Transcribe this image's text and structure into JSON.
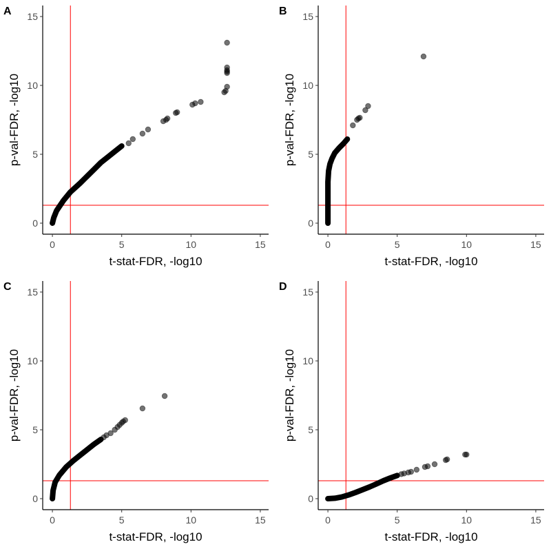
{
  "chart_data": [
    {
      "type": "scatter",
      "panel_label": "A",
      "xlabel": "t-stat-FDR, -log10",
      "ylabel": "p-val-FDR, -log10",
      "xlim": [
        -0.7,
        15.6
      ],
      "ylim": [
        -0.8,
        15.8
      ],
      "xticks": [
        0,
        5,
        10,
        15
      ],
      "yticks": [
        0,
        5,
        10,
        15
      ],
      "vline": 1.3,
      "hline": 1.3,
      "dense_curve": [
        [
          0,
          0
        ],
        [
          0.1,
          0.4
        ],
        [
          0.3,
          0.9
        ],
        [
          0.5,
          1.2
        ],
        [
          0.8,
          1.65
        ],
        [
          1.3,
          2.26
        ],
        [
          2,
          2.9
        ],
        [
          2.5,
          3.4
        ],
        [
          3,
          3.9
        ],
        [
          3.5,
          4.4
        ],
        [
          4,
          4.8
        ],
        [
          4.5,
          5.2
        ],
        [
          5,
          5.6
        ]
      ],
      "points": [
        [
          5.5,
          5.8
        ],
        [
          5.8,
          6.1
        ],
        [
          6.5,
          6.5
        ],
        [
          6.9,
          6.8
        ],
        [
          8,
          7.4
        ],
        [
          8.2,
          7.5
        ],
        [
          8.3,
          7.6
        ],
        [
          8.9,
          8.0
        ],
        [
          9.0,
          8.05
        ],
        [
          10.1,
          8.6
        ],
        [
          10.3,
          8.7
        ],
        [
          10.7,
          8.8
        ],
        [
          12.4,
          9.5
        ],
        [
          12.5,
          9.6
        ],
        [
          12.6,
          9.9
        ],
        [
          12.6,
          10.9
        ],
        [
          12.6,
          11.0
        ],
        [
          12.6,
          11.1
        ],
        [
          12.6,
          11.3
        ],
        [
          12.6,
          13.1
        ]
      ]
    },
    {
      "type": "scatter",
      "panel_label": "B",
      "xlabel": "t-stat-FDR, -log10",
      "ylabel": "p-val-FDR, -log10",
      "xlim": [
        -0.7,
        15.6
      ],
      "ylim": [
        -0.8,
        15.8
      ],
      "xticks": [
        0,
        5,
        10,
        15
      ],
      "yticks": [
        0,
        5,
        10,
        15
      ],
      "vline": 1.3,
      "hline": 1.3,
      "dense_curve": [
        [
          0,
          0
        ],
        [
          0,
          1.5
        ],
        [
          0,
          3
        ],
        [
          0.05,
          3.8
        ],
        [
          0.15,
          4.3
        ],
        [
          0.3,
          4.7
        ],
        [
          0.5,
          5.1
        ],
        [
          0.8,
          5.45
        ],
        [
          1.1,
          5.75
        ],
        [
          1.4,
          6.1
        ]
      ],
      "points": [
        [
          1.8,
          7.1
        ],
        [
          2.1,
          7.5
        ],
        [
          2.2,
          7.6
        ],
        [
          2.3,
          7.65
        ],
        [
          2.7,
          8.2
        ],
        [
          2.9,
          8.5
        ],
        [
          6.9,
          12.1
        ]
      ]
    },
    {
      "type": "scatter",
      "panel_label": "C",
      "xlabel": "t-stat-FDR, -log10",
      "ylabel": "p-val-FDR, -log10",
      "xlim": [
        -0.7,
        15.6
      ],
      "ylim": [
        -0.8,
        15.8
      ],
      "xticks": [
        0,
        5,
        10,
        15
      ],
      "yticks": [
        0,
        5,
        10,
        15
      ],
      "vline": 1.3,
      "hline": 1.3,
      "dense_curve": [
        [
          0,
          0
        ],
        [
          0.05,
          0.6
        ],
        [
          0.2,
          1.2
        ],
        [
          0.5,
          1.7
        ],
        [
          1,
          2.3
        ],
        [
          1.5,
          2.75
        ],
        [
          2,
          3.15
        ],
        [
          2.5,
          3.55
        ],
        [
          3,
          3.95
        ],
        [
          3.5,
          4.3
        ]
      ],
      "points": [
        [
          3.7,
          4.45
        ],
        [
          3.9,
          4.6
        ],
        [
          4.2,
          4.75
        ],
        [
          4.5,
          5.0
        ],
        [
          4.7,
          5.2
        ],
        [
          4.85,
          5.35
        ],
        [
          5.0,
          5.5
        ],
        [
          5.1,
          5.6
        ],
        [
          5.25,
          5.7
        ],
        [
          6.5,
          6.55
        ],
        [
          8.1,
          7.45
        ]
      ]
    },
    {
      "type": "scatter",
      "panel_label": "D",
      "xlabel": "t-stat-FDR, -log10",
      "ylabel": "p-val-FDR, -log10",
      "xlim": [
        -0.7,
        15.6
      ],
      "ylim": [
        -0.8,
        15.8
      ],
      "xticks": [
        0,
        5,
        10,
        15
      ],
      "yticks": [
        0,
        5,
        10,
        15
      ],
      "vline": 1.3,
      "hline": 1.3,
      "dense_curve": [
        [
          0,
          0
        ],
        [
          0.5,
          0.03
        ],
        [
          1,
          0.12
        ],
        [
          1.5,
          0.27
        ],
        [
          2,
          0.45
        ],
        [
          2.5,
          0.65
        ],
        [
          3,
          0.85
        ],
        [
          3.5,
          1.07
        ],
        [
          4,
          1.3
        ],
        [
          4.5,
          1.5
        ],
        [
          5,
          1.68
        ]
      ],
      "points": [
        [
          5.3,
          1.78
        ],
        [
          5.5,
          1.83
        ],
        [
          5.8,
          1.9
        ],
        [
          6.0,
          1.95
        ],
        [
          6.4,
          2.1
        ],
        [
          7.0,
          2.3
        ],
        [
          7.2,
          2.35
        ],
        [
          7.7,
          2.5
        ],
        [
          8.5,
          2.8
        ],
        [
          8.6,
          2.85
        ],
        [
          9.9,
          3.2
        ],
        [
          10.0,
          3.2
        ]
      ]
    }
  ],
  "colors": {
    "point": "#000000",
    "threshold": "#ff0000",
    "tick_text": "#4d4d4d"
  }
}
